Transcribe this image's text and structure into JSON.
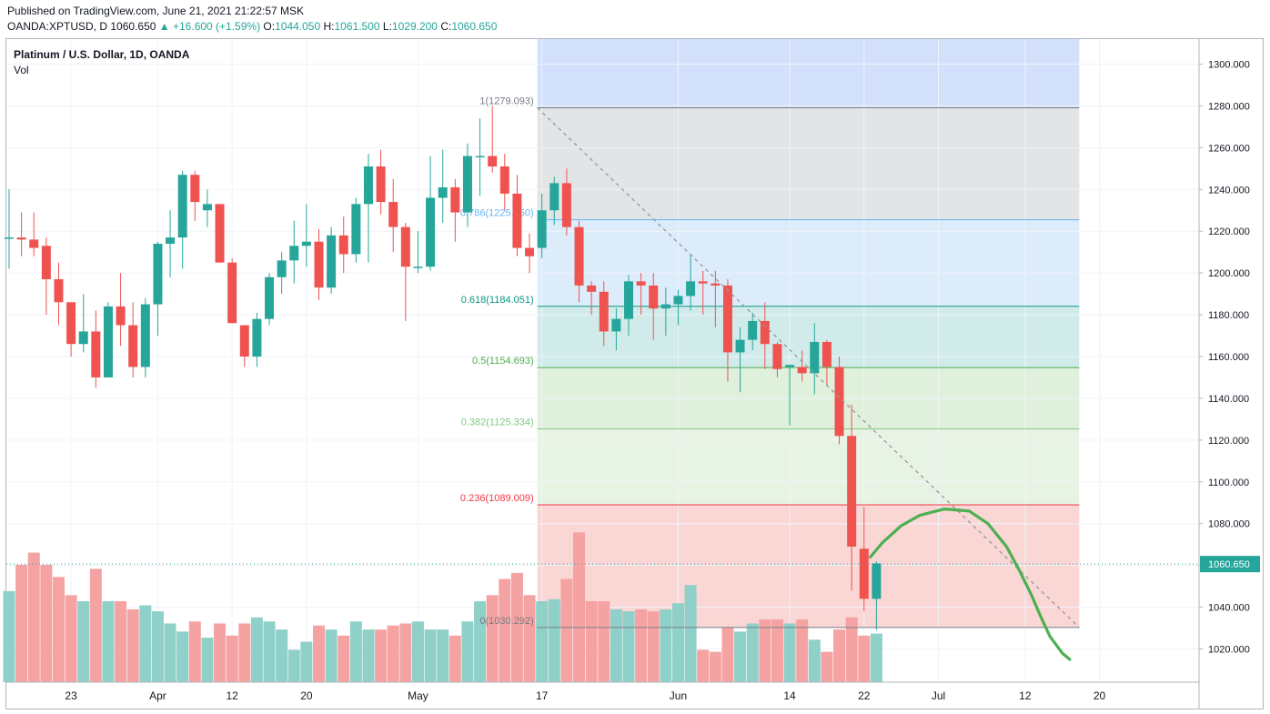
{
  "header": {
    "published": "Published on TradingView.com, June 21, 2021 21:22:57 MSK",
    "symbol": "OANDA:XPTUSD, D",
    "last": "1060.650",
    "change": "+16.600 (+1.59%)",
    "o_label": "O:",
    "o_value": "1044.050",
    "h_label": "H:",
    "h_value": "1061.500",
    "l_label": "L:",
    "l_value": "1029.200",
    "c_label": "C:",
    "c_value": "1060.650"
  },
  "legend": {
    "title": "Platinum / U.S. Dollar, 1D, OANDA",
    "vol": "Vol"
  },
  "colors": {
    "up": "#26a69a",
    "down": "#ef5350",
    "up_vol": "#8fd0c9",
    "down_vol": "#f5a3a2",
    "projection": "#4caf50"
  },
  "chart_data": {
    "type": "candlestick",
    "title": "Platinum / U.S. Dollar, 1D, OANDA",
    "ylim": [
      1010,
      1305
    ],
    "y_ticks": [
      "1020.000",
      "1040.000",
      "1060.000",
      "1080.000",
      "1100.000",
      "1120.000",
      "1140.000",
      "1160.000",
      "1180.000",
      "1200.000",
      "1220.000",
      "1240.000",
      "1260.000",
      "1280.000",
      "1300.000"
    ],
    "x_ticks": [
      {
        "label": "23",
        "i": 5
      },
      {
        "label": "Apr",
        "i": 12
      },
      {
        "label": "12",
        "i": 18
      },
      {
        "label": "20",
        "i": 24
      },
      {
        "label": "May",
        "i": 33
      },
      {
        "label": "17",
        "i": 43
      },
      {
        "label": "Jun",
        "i": 54
      },
      {
        "label": "14",
        "i": 63
      },
      {
        "label": "22",
        "i": 69
      },
      {
        "label": "Jul",
        "i": 75
      },
      {
        "label": "12",
        "i": 82
      },
      {
        "label": "20",
        "i": 88
      }
    ],
    "candles": [
      {
        "o": 1217,
        "h": 1240,
        "l": 1202,
        "c": 1217,
        "v": 45
      },
      {
        "o": 1217,
        "h": 1229,
        "l": 1208,
        "c": 1216,
        "v": 58
      },
      {
        "o": 1216,
        "h": 1229,
        "l": 1208,
        "c": 1212,
        "v": 64
      },
      {
        "o": 1213,
        "h": 1217,
        "l": 1180,
        "c": 1197,
        "v": 58
      },
      {
        "o": 1197,
        "h": 1205,
        "l": 1175,
        "c": 1186,
        "v": 52
      },
      {
        "o": 1186,
        "h": 1186,
        "l": 1160,
        "c": 1166,
        "v": 43
      },
      {
        "o": 1166,
        "h": 1190,
        "l": 1162,
        "c": 1172,
        "v": 40
      },
      {
        "o": 1172,
        "h": 1182,
        "l": 1145,
        "c": 1150,
        "v": 56
      },
      {
        "o": 1150,
        "h": 1186,
        "l": 1150,
        "c": 1184,
        "v": 40
      },
      {
        "o": 1184,
        "h": 1200,
        "l": 1165,
        "c": 1175,
        "v": 40
      },
      {
        "o": 1175,
        "h": 1186,
        "l": 1150,
        "c": 1155,
        "v": 36
      },
      {
        "o": 1155,
        "h": 1188,
        "l": 1150,
        "c": 1185,
        "v": 38
      },
      {
        "o": 1185,
        "h": 1215,
        "l": 1170,
        "c": 1214,
        "v": 35
      },
      {
        "o": 1214,
        "h": 1230,
        "l": 1198,
        "c": 1217,
        "v": 29
      },
      {
        "o": 1217,
        "h": 1249,
        "l": 1202,
        "c": 1247,
        "v": 25
      },
      {
        "o": 1247,
        "h": 1249,
        "l": 1225,
        "c": 1234,
        "v": 30
      },
      {
        "o": 1230,
        "h": 1240,
        "l": 1222,
        "c": 1233,
        "v": 22
      },
      {
        "o": 1233,
        "h": 1233,
        "l": 1205,
        "c": 1205,
        "v": 29
      },
      {
        "o": 1205,
        "h": 1207,
        "l": 1176,
        "c": 1176,
        "v": 23
      },
      {
        "o": 1175,
        "h": 1175,
        "l": 1155,
        "c": 1160,
        "v": 29
      },
      {
        "o": 1160,
        "h": 1181,
        "l": 1155,
        "c": 1178,
        "v": 32
      },
      {
        "o": 1178,
        "h": 1200,
        "l": 1175,
        "c": 1198,
        "v": 30
      },
      {
        "o": 1198,
        "h": 1210,
        "l": 1190,
        "c": 1206,
        "v": 26
      },
      {
        "o": 1206,
        "h": 1225,
        "l": 1195,
        "c": 1213,
        "v": 16
      },
      {
        "o": 1213,
        "h": 1233,
        "l": 1203,
        "c": 1215,
        "v": 20
      },
      {
        "o": 1215,
        "h": 1221,
        "l": 1187,
        "c": 1193,
        "v": 28
      },
      {
        "o": 1193,
        "h": 1222,
        "l": 1190,
        "c": 1218,
        "v": 26
      },
      {
        "o": 1218,
        "h": 1227,
        "l": 1200,
        "c": 1209,
        "v": 23
      },
      {
        "o": 1209,
        "h": 1236,
        "l": 1205,
        "c": 1233,
        "v": 30
      },
      {
        "o": 1233,
        "h": 1257,
        "l": 1205,
        "c": 1251,
        "v": 26
      },
      {
        "o": 1251,
        "h": 1259,
        "l": 1228,
        "c": 1234,
        "v": 26
      },
      {
        "o": 1234,
        "h": 1245,
        "l": 1210,
        "c": 1222,
        "v": 28
      },
      {
        "o": 1222,
        "h": 1224,
        "l": 1177,
        "c": 1203,
        "v": 29
      },
      {
        "o": 1203,
        "h": 1220,
        "l": 1200,
        "c": 1203,
        "v": 30
      },
      {
        "o": 1203,
        "h": 1256,
        "l": 1201,
        "c": 1236,
        "v": 26
      },
      {
        "o": 1236,
        "h": 1259,
        "l": 1224,
        "c": 1241,
        "v": 26
      },
      {
        "o": 1241,
        "h": 1245,
        "l": 1215,
        "c": 1229,
        "v": 23
      },
      {
        "o": 1229,
        "h": 1262,
        "l": 1222,
        "c": 1256,
        "v": 30
      },
      {
        "o": 1256,
        "h": 1274,
        "l": 1237,
        "c": 1256,
        "v": 40
      },
      {
        "o": 1256,
        "h": 1280,
        "l": 1248,
        "c": 1251,
        "v": 43
      },
      {
        "o": 1251,
        "h": 1257,
        "l": 1230,
        "c": 1238,
        "v": 51
      },
      {
        "o": 1238,
        "h": 1247,
        "l": 1208,
        "c": 1212,
        "v": 54
      },
      {
        "o": 1212,
        "h": 1219,
        "l": 1200,
        "c": 1208,
        "v": 43
      },
      {
        "o": 1212,
        "h": 1238,
        "l": 1207,
        "c": 1230,
        "v": 40
      },
      {
        "o": 1230,
        "h": 1246,
        "l": 1223,
        "c": 1243,
        "v": 41
      },
      {
        "o": 1243,
        "h": 1250,
        "l": 1218,
        "c": 1222,
        "v": 51
      },
      {
        "o": 1222,
        "h": 1225,
        "l": 1186,
        "c": 1194,
        "v": 74
      },
      {
        "o": 1194,
        "h": 1196,
        "l": 1180,
        "c": 1191,
        "v": 40
      },
      {
        "o": 1191,
        "h": 1196,
        "l": 1165,
        "c": 1172,
        "v": 40
      },
      {
        "o": 1172,
        "h": 1183,
        "l": 1163,
        "c": 1178,
        "v": 36
      },
      {
        "o": 1178,
        "h": 1199,
        "l": 1170,
        "c": 1196,
        "v": 35
      },
      {
        "o": 1196,
        "h": 1200,
        "l": 1180,
        "c": 1194,
        "v": 36
      },
      {
        "o": 1194,
        "h": 1200,
        "l": 1168,
        "c": 1183,
        "v": 35
      },
      {
        "o": 1183,
        "h": 1193,
        "l": 1170,
        "c": 1185,
        "v": 36
      },
      {
        "o": 1185,
        "h": 1192,
        "l": 1175,
        "c": 1189,
        "v": 39
      },
      {
        "o": 1189,
        "h": 1209,
        "l": 1182,
        "c": 1196,
        "v": 48
      },
      {
        "o": 1196,
        "h": 1201,
        "l": 1180,
        "c": 1195,
        "v": 16
      },
      {
        "o": 1195,
        "h": 1201,
        "l": 1174,
        "c": 1194,
        "v": 15
      },
      {
        "o": 1194,
        "h": 1197,
        "l": 1148,
        "c": 1162,
        "v": 27
      },
      {
        "o": 1162,
        "h": 1174,
        "l": 1143,
        "c": 1168,
        "v": 25
      },
      {
        "o": 1168,
        "h": 1181,
        "l": 1163,
        "c": 1177,
        "v": 29
      },
      {
        "o": 1177,
        "h": 1186,
        "l": 1154,
        "c": 1166,
        "v": 31
      },
      {
        "o": 1166,
        "h": 1167,
        "l": 1150,
        "c": 1154,
        "v": 31
      },
      {
        "o": 1155,
        "h": 1156,
        "l": 1127,
        "c": 1156,
        "v": 29
      },
      {
        "o": 1155,
        "h": 1163,
        "l": 1148,
        "c": 1152,
        "v": 31
      },
      {
        "o": 1152,
        "h": 1176,
        "l": 1142,
        "c": 1167,
        "v": 21
      },
      {
        "o": 1167,
        "h": 1168,
        "l": 1146,
        "c": 1155,
        "v": 15
      },
      {
        "o": 1155,
        "h": 1160,
        "l": 1118,
        "c": 1122,
        "v": 26
      },
      {
        "o": 1122,
        "h": 1137,
        "l": 1048,
        "c": 1069,
        "v": 32
      },
      {
        "o": 1068,
        "h": 1088,
        "l": 1038,
        "c": 1044,
        "v": 23
      },
      {
        "o": 1044,
        "h": 1062,
        "l": 1029,
        "c": 1061,
        "v": 24
      }
    ],
    "fib_levels": [
      {
        "ratio": "1",
        "value": 1279.093,
        "label": "1(1279.093)",
        "color": "#787b86",
        "fill": "#e3e4e6"
      },
      {
        "ratio": "0.786",
        "value": 1225.45,
        "label": "0.786(1225.450)",
        "color": "#64b5f6",
        "fill": "#dcecfb"
      },
      {
        "ratio": "0.618",
        "value": 1184.051,
        "label": "0.618(1184.051)",
        "color": "#089981",
        "fill": "#d0ebea"
      },
      {
        "ratio": "0.5",
        "value": 1154.693,
        "label": "0.5(1154.693)",
        "color": "#4caf50",
        "fill": "#dff0dc"
      },
      {
        "ratio": "0.382",
        "value": 1125.334,
        "label": "0.382(1125.334)",
        "color": "#81c784",
        "fill": "#e8f4e3"
      },
      {
        "ratio": "0.236",
        "value": 1089.009,
        "label": "0.236(1089.009)",
        "color": "#f23645",
        "fill": "#fad6d5"
      },
      {
        "ratio": "0",
        "value": 1030.292,
        "label": "0(1030.292)",
        "color": "#787b86",
        "fill": ""
      }
    ],
    "fib_top_fill": "#d2e0fc",
    "fib_range": {
      "i_start": 43,
      "i_end": 86
    },
    "trend_line": {
      "i_start": 43,
      "y_start": 1279.093,
      "i_end": 86,
      "y_end": 1030.292
    },
    "projection_curve": [
      {
        "i": 69.5,
        "y": 1064
      },
      {
        "i": 70.5,
        "y": 1071
      },
      {
        "i": 72,
        "y": 1079
      },
      {
        "i": 73.5,
        "y": 1084
      },
      {
        "i": 75.5,
        "y": 1087
      },
      {
        "i": 77.5,
        "y": 1086
      },
      {
        "i": 79,
        "y": 1080
      },
      {
        "i": 80.5,
        "y": 1069
      },
      {
        "i": 81.5,
        "y": 1058
      },
      {
        "i": 82.5,
        "y": 1046
      },
      {
        "i": 83.3,
        "y": 1035
      },
      {
        "i": 84,
        "y": 1026
      },
      {
        "i": 85,
        "y": 1018
      },
      {
        "i": 85.6,
        "y": 1015
      }
    ],
    "last_price": {
      "value": 1060.65,
      "label": "1060.650"
    },
    "vol_max": 80
  }
}
